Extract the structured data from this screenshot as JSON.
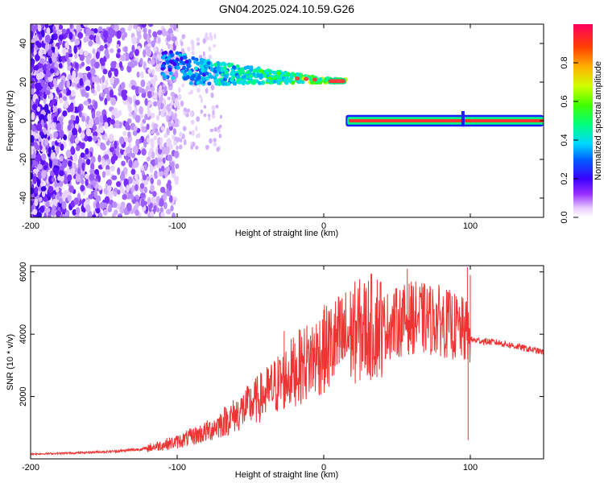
{
  "title": "GN04.2025.024.10.59.G26",
  "chart_data": [
    {
      "type": "heatmap",
      "title": "GN04.2025.024.10.59.G26",
      "xlabel": "Height of straight line (km)",
      "ylabel": "Frequency (Hz)",
      "xlim": [
        -200,
        150
      ],
      "ylim": [
        -50,
        50
      ],
      "x_ticks": [
        -200,
        -100,
        0,
        100
      ],
      "y_ticks": [
        -40,
        -20,
        0,
        20,
        40
      ],
      "x_tick_labels": [
        "-200",
        "-100",
        "0",
        "100"
      ],
      "y_tick_labels": [
        "-40",
        "-20",
        "0",
        "20",
        "40"
      ],
      "colorbar": {
        "label": "Normalized spectral amplitude",
        "range": [
          0,
          1
        ],
        "ticks": [
          0.0,
          0.2,
          0.4,
          0.6,
          0.8
        ],
        "tick_labels": [
          "0.0",
          "0.2",
          "0.4",
          "0.6",
          "0.8"
        ]
      },
      "ridge": [
        {
          "x": -110,
          "f": 30
        },
        {
          "x": -100,
          "f": 28
        },
        {
          "x": -90,
          "f": 26
        },
        {
          "x": -80,
          "f": 25
        },
        {
          "x": -70,
          "f": 24.5
        },
        {
          "x": -60,
          "f": 24
        },
        {
          "x": -50,
          "f": 23.5
        },
        {
          "x": -40,
          "f": 23
        },
        {
          "x": -30,
          "f": 22.5
        },
        {
          "x": -20,
          "f": 22
        },
        {
          "x": -10,
          "f": 21.5
        },
        {
          "x": 0,
          "f": 21
        },
        {
          "x": 15,
          "f": 20.5
        }
      ],
      "lower_track": {
        "x_start": 15,
        "x_end": 150,
        "f": 0
      }
    },
    {
      "type": "line",
      "xlabel": "Height of straight line (km)",
      "ylabel": "SNR (10 * v/v)",
      "xlim": [
        -200,
        150
      ],
      "ylim": [
        0,
        6200
      ],
      "x_ticks": [
        -200,
        -100,
        0,
        100
      ],
      "y_ticks": [
        2000,
        4000,
        6000
      ],
      "x_tick_labels": [
        "-200",
        "-100",
        "0",
        "100"
      ],
      "y_tick_labels": [
        "2000",
        "4000",
        "6000"
      ],
      "line_color": "#ee3333",
      "envelope": [
        {
          "x": -200,
          "y": 150
        },
        {
          "x": -180,
          "y": 170
        },
        {
          "x": -160,
          "y": 200
        },
        {
          "x": -140,
          "y": 240
        },
        {
          "x": -120,
          "y": 320
        },
        {
          "x": -100,
          "y": 500
        },
        {
          "x": -80,
          "y": 800
        },
        {
          "x": -60,
          "y": 1300
        },
        {
          "x": -40,
          "y": 1900
        },
        {
          "x": -20,
          "y": 2600
        },
        {
          "x": 0,
          "y": 3200
        },
        {
          "x": 20,
          "y": 3700
        },
        {
          "x": 40,
          "y": 4000
        },
        {
          "x": 60,
          "y": 4300
        },
        {
          "x": 80,
          "y": 4200
        },
        {
          "x": 95,
          "y": 3900
        },
        {
          "x": 100,
          "y": 3800
        },
        {
          "x": 120,
          "y": 3700
        },
        {
          "x": 150,
          "y": 3400
        }
      ],
      "spikes": [
        {
          "x": 57,
          "y": 6100
        },
        {
          "x": 98,
          "y": 6150
        },
        {
          "x": 100,
          "y": 5900
        },
        {
          "x": 98.5,
          "y": 600
        },
        {
          "x": 63,
          "y": 5200
        },
        {
          "x": -16,
          "y": 4100
        },
        {
          "x": -27,
          "y": 4100
        }
      ],
      "series": [
        {
          "name": "SNR",
          "color": "#ee3333"
        }
      ]
    }
  ]
}
